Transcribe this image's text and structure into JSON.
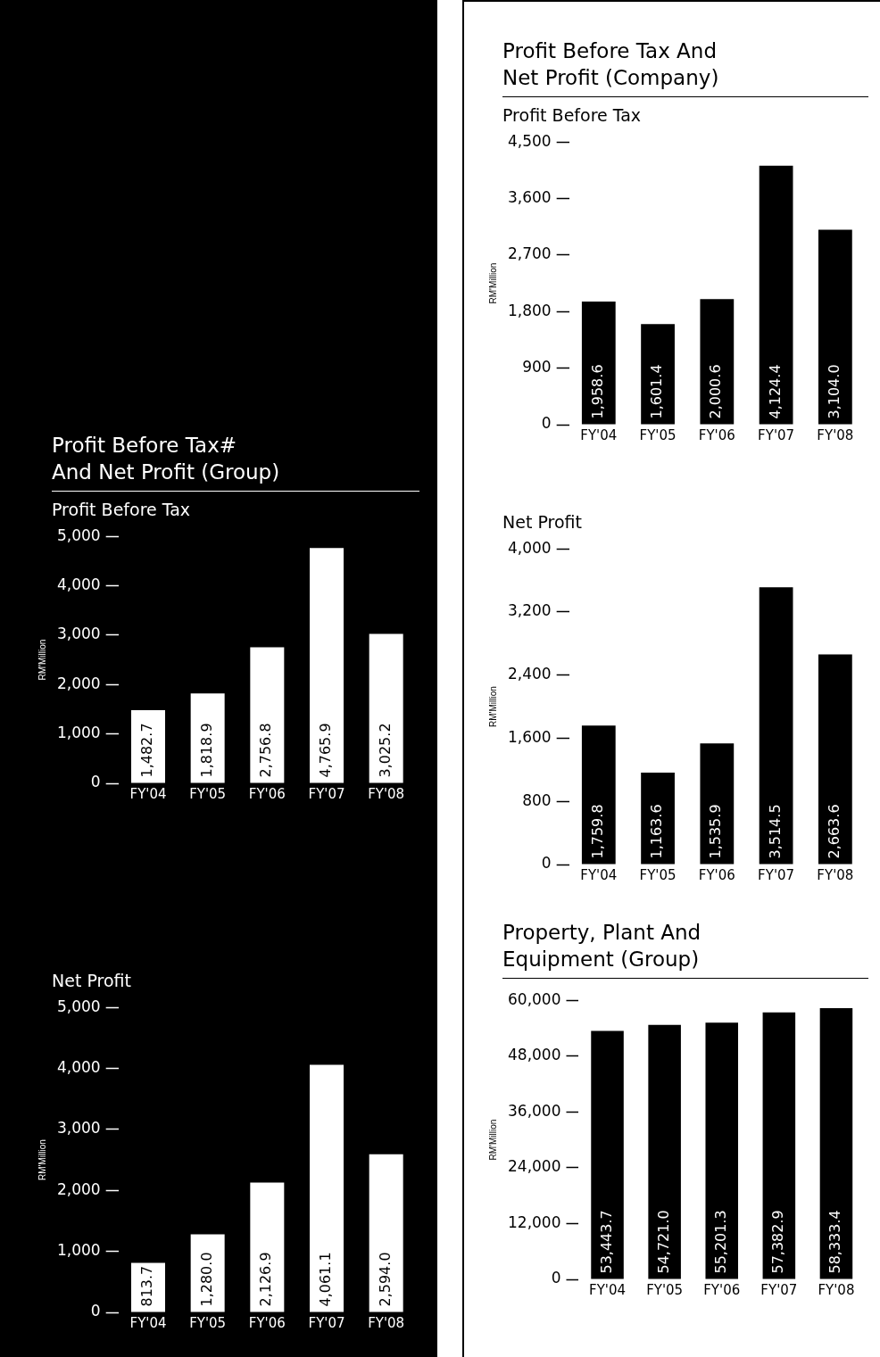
{
  "chart_data": [
    {
      "type": "bar",
      "title": "Profit Before Tax#\nAnd Net Profit (Group)",
      "subtitle": "Profit Before Tax",
      "ylabel": "RM'Million",
      "categories": [
        "FY'04",
        "FY'05",
        "FY'06",
        "FY'07",
        "FY'08"
      ],
      "values": [
        1482.7,
        1818.9,
        2756.8,
        4765.9,
        3025.2
      ],
      "value_labels": [
        "1,482.7",
        "1,818.9",
        "2,756.8",
        "4,765.9",
        "3,025.2"
      ],
      "color": "#ffffff",
      "ylim": [
        0,
        5000
      ],
      "yticks": [
        0,
        {
          "value": 1000,
          "label": "1,000"
        },
        {
          "value": 2000,
          "label": "2,000"
        },
        {
          "value": 3000,
          "label": "3,000"
        },
        {
          "value": 4000,
          "label": "4,000"
        },
        {
          "value": 5000,
          "label": "5,000"
        }
      ],
      "grid": false,
      "legend": false
    },
    {
      "type": "bar",
      "subtitle": "Net Profit",
      "ylabel": "RM'Million",
      "categories": [
        "FY'04",
        "FY'05",
        "FY'06",
        "FY'07",
        "FY'08"
      ],
      "values": [
        813.7,
        1280.0,
        2126.9,
        4061.1,
        2594.0
      ],
      "value_labels": [
        "813.7",
        "1,280.0",
        "2,126.9",
        "4,061.1",
        "2,594.0"
      ],
      "color": "#ffffff",
      "ylim": [
        0,
        5000
      ],
      "yticks": [
        0,
        {
          "value": 1000,
          "label": "1,000"
        },
        {
          "value": 2000,
          "label": "2,000"
        },
        {
          "value": 3000,
          "label": "3,000"
        },
        {
          "value": 4000,
          "label": "4,000"
        },
        {
          "value": 5000,
          "label": "5,000"
        }
      ],
      "grid": false,
      "legend": false
    },
    {
      "type": "bar",
      "title": "Profit Before Tax And\nNet Profit (Company)",
      "subtitle": "Profit Before Tax",
      "ylabel": "RM'Million",
      "categories": [
        "FY'04",
        "FY'05",
        "FY'06",
        "FY'07",
        "FY'08"
      ],
      "values": [
        1958.6,
        1601.4,
        2000.6,
        4124.4,
        3104.0
      ],
      "value_labels": [
        "1,958.6",
        "1,601.4",
        "2,000.6",
        "4,124.4",
        "3,104.0"
      ],
      "color": "#000000",
      "ylim": [
        0,
        4500
      ],
      "yticks": [
        0,
        900,
        {
          "value": 1800,
          "label": "1,800"
        },
        {
          "value": 2700,
          "label": "2,700"
        },
        {
          "value": 3600,
          "label": "3,600"
        },
        {
          "value": 4500,
          "label": "4,500"
        }
      ],
      "grid": false,
      "legend": false
    },
    {
      "type": "bar",
      "subtitle": "Net Profit",
      "ylabel": "RM'Million",
      "categories": [
        "FY'04",
        "FY'05",
        "FY'06",
        "FY'07",
        "FY'08"
      ],
      "values": [
        1759.8,
        1163.6,
        1535.9,
        3514.5,
        2663.6
      ],
      "value_labels": [
        "1,759.8",
        "1,163.6",
        "1,535.9",
        "3,514.5",
        "2,663.6"
      ],
      "color": "#000000",
      "ylim": [
        0,
        4000
      ],
      "yticks": [
        0,
        800,
        {
          "value": 1600,
          "label": "1,600"
        },
        {
          "value": 2400,
          "label": "2,400"
        },
        {
          "value": 3200,
          "label": "3,200"
        },
        {
          "value": 4000,
          "label": "4,000"
        }
      ],
      "grid": false,
      "legend": false
    },
    {
      "type": "bar",
      "title": "Property, Plant And\nEquipment (Group)",
      "ylabel": "RM'Million",
      "categories": [
        "FY'04",
        "FY'05",
        "FY'06",
        "FY'07",
        "FY'08"
      ],
      "values": [
        53443.7,
        54721.0,
        55201.3,
        57382.9,
        58333.4
      ],
      "value_labels": [
        "53,443.7",
        "54,721.0",
        "55,201.3",
        "57,382.9",
        "58,333.4"
      ],
      "color": "#000000",
      "ylim": [
        0,
        60000
      ],
      "yticks": [
        0,
        {
          "value": 12000,
          "label": "12,000"
        },
        {
          "value": 24000,
          "label": "24,000"
        },
        {
          "value": 36000,
          "label": "36,000"
        },
        {
          "value": 48000,
          "label": "48,000"
        },
        {
          "value": 60000,
          "label": "60,000"
        }
      ],
      "grid": false,
      "legend": false
    }
  ]
}
